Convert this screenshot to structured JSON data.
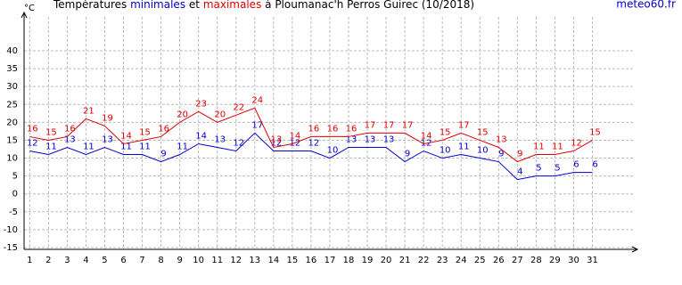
{
  "chart_data": {
    "type": "line",
    "title_prefix": "Températures",
    "title_joiner": "et",
    "title_suffix": "à Ploumanac'h Perros Guirec (10/2018)",
    "source": "meteo60.fr",
    "y_unit": "°C",
    "x": [
      1,
      2,
      3,
      4,
      5,
      6,
      7,
      8,
      9,
      10,
      11,
      12,
      13,
      14,
      15,
      16,
      17,
      18,
      19,
      20,
      21,
      22,
      23,
      24,
      25,
      26,
      27,
      28,
      29,
      30,
      31
    ],
    "series": [
      {
        "name": "minimales",
        "color": "#0000cc",
        "values": [
          12,
          11,
          13,
          11,
          13,
          11,
          11,
          9,
          11,
          14,
          13,
          12,
          17,
          12,
          12,
          12,
          10,
          13,
          13,
          13,
          9,
          12,
          10,
          11,
          10,
          9,
          4,
          5,
          5,
          6,
          6
        ]
      },
      {
        "name": "maximales",
        "color": "#dd0000",
        "values": [
          16,
          15,
          16,
          21,
          19,
          14,
          15,
          16,
          20,
          23,
          20,
          22,
          24,
          13,
          14,
          16,
          16,
          16,
          17,
          17,
          17,
          14,
          15,
          17,
          15,
          13,
          9,
          11,
          11,
          12,
          15
        ]
      }
    ],
    "xlim": [
      0.7,
      33.4
    ],
    "ylim": [
      -15.5,
      50.7
    ],
    "xticks": [
      1,
      2,
      3,
      4,
      5,
      6,
      7,
      8,
      9,
      10,
      11,
      12,
      13,
      14,
      15,
      16,
      17,
      18,
      19,
      20,
      21,
      22,
      23,
      24,
      25,
      26,
      27,
      28,
      29,
      30,
      31
    ],
    "yticks": [
      -15,
      -10,
      -5,
      0,
      5,
      10,
      15,
      20,
      25,
      30,
      35,
      40
    ],
    "grid": true
  }
}
